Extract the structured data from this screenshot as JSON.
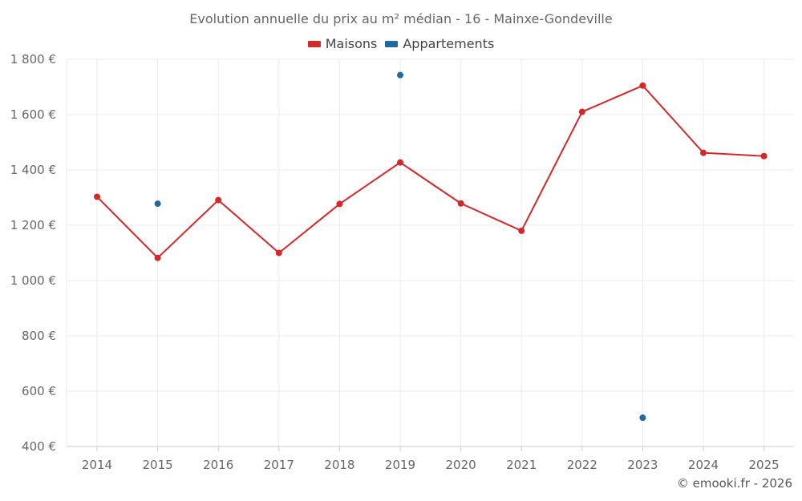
{
  "chart_data": {
    "type": "line",
    "title": "Evolution annuelle du prix au m² médian - 16 - Mainxe-Gondeville",
    "xlabel": "",
    "ylabel": "",
    "ylim": [
      400,
      1800
    ],
    "yticks": [
      400,
      600,
      800,
      1000,
      1200,
      1400,
      1600,
      1800
    ],
    "ytick_labels": [
      "400 €",
      "600 €",
      "800 €",
      "1 000 €",
      "1 200 €",
      "1 400 €",
      "1 600 €",
      "1 800 €"
    ],
    "categories": [
      "2014",
      "2015",
      "2016",
      "2017",
      "2018",
      "2019",
      "2020",
      "2021",
      "2022",
      "2023",
      "2024",
      "2025"
    ],
    "grid": true,
    "legend_position": "top-center",
    "series": [
      {
        "name": "Maisons",
        "color": "#d62728",
        "line": true,
        "values": [
          1303,
          1082,
          1291,
          1100,
          1277,
          1427,
          1279,
          1180,
          1610,
          1705,
          1462,
          1450
        ]
      },
      {
        "name": "Appartements",
        "color": "#1f6aa0",
        "line": false,
        "values": [
          null,
          1278,
          null,
          null,
          null,
          1743,
          null,
          null,
          null,
          504,
          null,
          null
        ]
      }
    ]
  },
  "credit": "© emooki.fr - 2026"
}
